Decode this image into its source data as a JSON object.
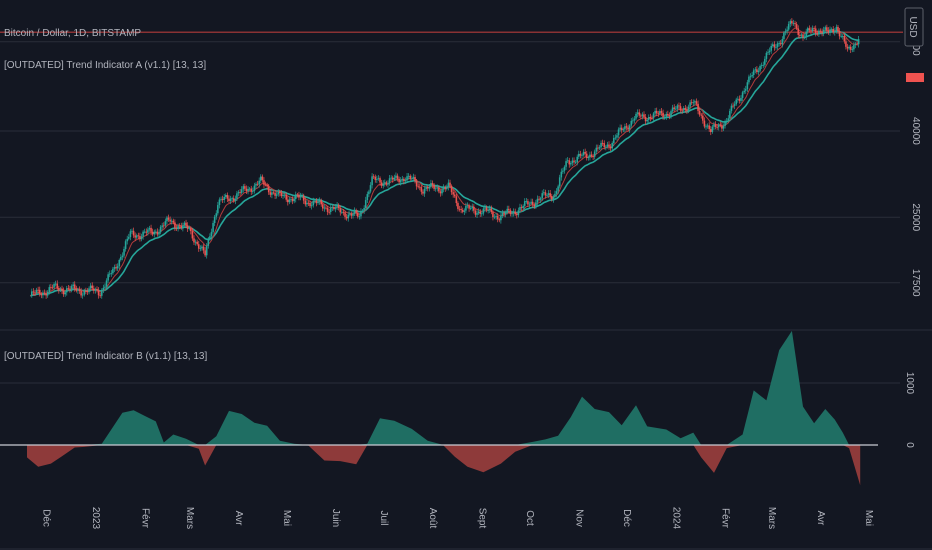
{
  "header": {
    "symbol": "Bitcoin / Dollar, 1D, BITSTAMP",
    "indicator_a": "[OUTDATED] Trend Indicator A (v1.1) [13, 13]",
    "indicator_b": "[OUTDATED] Trend Indicator B (v1.1) [13, 13]"
  },
  "price_badge": {
    "label": "USD"
  },
  "colors": {
    "bg": "#131722",
    "grid": "#2a2e39",
    "up": "#26a69a",
    "down": "#ef5350",
    "red_line": "#b23b3b",
    "teal_fill": "#1f6e63",
    "red_fill": "#8e3a3a"
  },
  "chart_data": [
    {
      "type": "candlestick",
      "title": "Bitcoin / Dollar, 1D, BITSTAMP",
      "yticks": [
        17500,
        25000,
        40000,
        65000
      ],
      "ytick_labels": [
        "17500",
        "25000",
        "40000",
        "65000"
      ],
      "ylim": [
        15500,
        74000
      ],
      "horizontal_line": 68500,
      "xticks": [
        "Déc",
        "2023",
        "Févr",
        "Mars",
        "Avr",
        "Mai",
        "Juin",
        "Juil",
        "Août",
        "Sept",
        "Oct",
        "Nov",
        "Déc",
        "2024",
        "Févr",
        "Mars",
        "Avr",
        "Mai"
      ],
      "close_series": [
        [
          "2022-11-20",
          16300
        ],
        [
          "2022-12-05",
          17000
        ],
        [
          "2022-12-20",
          16800
        ],
        [
          "2023-01-03",
          16700
        ],
        [
          "2023-01-12",
          18800
        ],
        [
          "2023-01-22",
          22700
        ],
        [
          "2023-02-05",
          23000
        ],
        [
          "2023-02-16",
          24500
        ],
        [
          "2023-02-28",
          23300
        ],
        [
          "2023-03-10",
          20200
        ],
        [
          "2023-03-18",
          27000
        ],
        [
          "2023-04-01",
          28500
        ],
        [
          "2023-04-14",
          30300
        ],
        [
          "2023-04-25",
          28000
        ],
        [
          "2023-05-08",
          27700
        ],
        [
          "2023-05-20",
          26800
        ],
        [
          "2023-06-05",
          25700
        ],
        [
          "2023-06-15",
          25000
        ],
        [
          "2023-06-23",
          30500
        ],
        [
          "2023-07-05",
          30400
        ],
        [
          "2023-07-14",
          31200
        ],
        [
          "2023-07-25",
          29200
        ],
        [
          "2023-08-10",
          29400
        ],
        [
          "2023-08-18",
          26100
        ],
        [
          "2023-09-01",
          25900
        ],
        [
          "2023-09-12",
          25100
        ],
        [
          "2023-09-25",
          26300
        ],
        [
          "2023-10-05",
          27600
        ],
        [
          "2023-10-16",
          28500
        ],
        [
          "2023-10-24",
          34000
        ],
        [
          "2023-11-05",
          35000
        ],
        [
          "2023-11-20",
          37500
        ],
        [
          "2023-12-05",
          43000
        ],
        [
          "2023-12-20",
          43600
        ],
        [
          "2024-01-02",
          45000
        ],
        [
          "2024-01-11",
          46500
        ],
        [
          "2024-01-22",
          39800
        ],
        [
          "2024-02-01",
          42500
        ],
        [
          "2024-02-14",
          51800
        ],
        [
          "2024-02-28",
          61500
        ],
        [
          "2024-03-06",
          66000
        ],
        [
          "2024-03-14",
          72500
        ],
        [
          "2024-03-20",
          66500
        ],
        [
          "2024-03-27",
          70000
        ],
        [
          "2024-04-05",
          68000
        ],
        [
          "2024-04-10",
          71000
        ],
        [
          "2024-04-17",
          61500
        ],
        [
          "2024-04-24",
          66500
        ]
      ]
    },
    {
      "type": "area",
      "title": "[OUTDATED] Trend Indicator B (v1.1) [13, 13]",
      "yticks": [
        0,
        1000
      ],
      "ytick_labels": [
        "0",
        "1000"
      ],
      "series": [
        [
          "2022-11-18",
          -200
        ],
        [
          "2022-11-25",
          -350
        ],
        [
          "2022-12-03",
          -300
        ],
        [
          "2022-12-10",
          -180
        ],
        [
          "2022-12-18",
          -40
        ],
        [
          "2022-12-24",
          -30
        ],
        [
          "2023-01-04",
          20
        ],
        [
          "2023-01-10",
          250
        ],
        [
          "2023-01-17",
          520
        ],
        [
          "2023-01-24",
          560
        ],
        [
          "2023-01-31",
          470
        ],
        [
          "2023-02-07",
          380
        ],
        [
          "2023-02-12",
          40
        ],
        [
          "2023-02-18",
          170
        ],
        [
          "2023-02-26",
          100
        ],
        [
          "2023-03-06",
          -60
        ],
        [
          "2023-03-10",
          -330
        ],
        [
          "2023-03-17",
          140
        ],
        [
          "2023-03-25",
          550
        ],
        [
          "2023-04-02",
          500
        ],
        [
          "2023-04-10",
          360
        ],
        [
          "2023-04-18",
          310
        ],
        [
          "2023-04-26",
          70
        ],
        [
          "2023-05-05",
          20
        ],
        [
          "2023-05-14",
          -10
        ],
        [
          "2023-05-24",
          -250
        ],
        [
          "2023-06-03",
          -260
        ],
        [
          "2023-06-13",
          -310
        ],
        [
          "2023-06-20",
          20
        ],
        [
          "2023-06-28",
          430
        ],
        [
          "2023-07-07",
          390
        ],
        [
          "2023-07-18",
          260
        ],
        [
          "2023-07-28",
          70
        ],
        [
          "2023-08-07",
          -10
        ],
        [
          "2023-08-14",
          -190
        ],
        [
          "2023-08-22",
          -350
        ],
        [
          "2023-09-01",
          -440
        ],
        [
          "2023-09-12",
          -300
        ],
        [
          "2023-09-21",
          -110
        ],
        [
          "2023-10-02",
          50
        ],
        [
          "2023-10-10",
          90
        ],
        [
          "2023-10-18",
          150
        ],
        [
          "2023-10-26",
          450
        ],
        [
          "2023-11-02",
          780
        ],
        [
          "2023-11-10",
          580
        ],
        [
          "2023-11-19",
          530
        ],
        [
          "2023-11-27",
          320
        ],
        [
          "2023-12-06",
          640
        ],
        [
          "2023-12-13",
          300
        ],
        [
          "2023-12-25",
          250
        ],
        [
          "2024-01-03",
          110
        ],
        [
          "2024-01-11",
          200
        ],
        [
          "2024-01-16",
          -200
        ],
        [
          "2024-01-24",
          -450
        ],
        [
          "2024-02-01",
          -50
        ],
        [
          "2024-02-11",
          170
        ],
        [
          "2024-02-18",
          880
        ],
        [
          "2024-02-26",
          720
        ],
        [
          "2024-03-05",
          1530
        ],
        [
          "2024-03-13",
          1840
        ],
        [
          "2024-03-20",
          620
        ],
        [
          "2024-03-27",
          350
        ],
        [
          "2024-04-03",
          580
        ],
        [
          "2024-04-09",
          410
        ],
        [
          "2024-04-14",
          200
        ],
        [
          "2024-04-18",
          -50
        ],
        [
          "2024-04-25",
          -650
        ]
      ]
    }
  ]
}
